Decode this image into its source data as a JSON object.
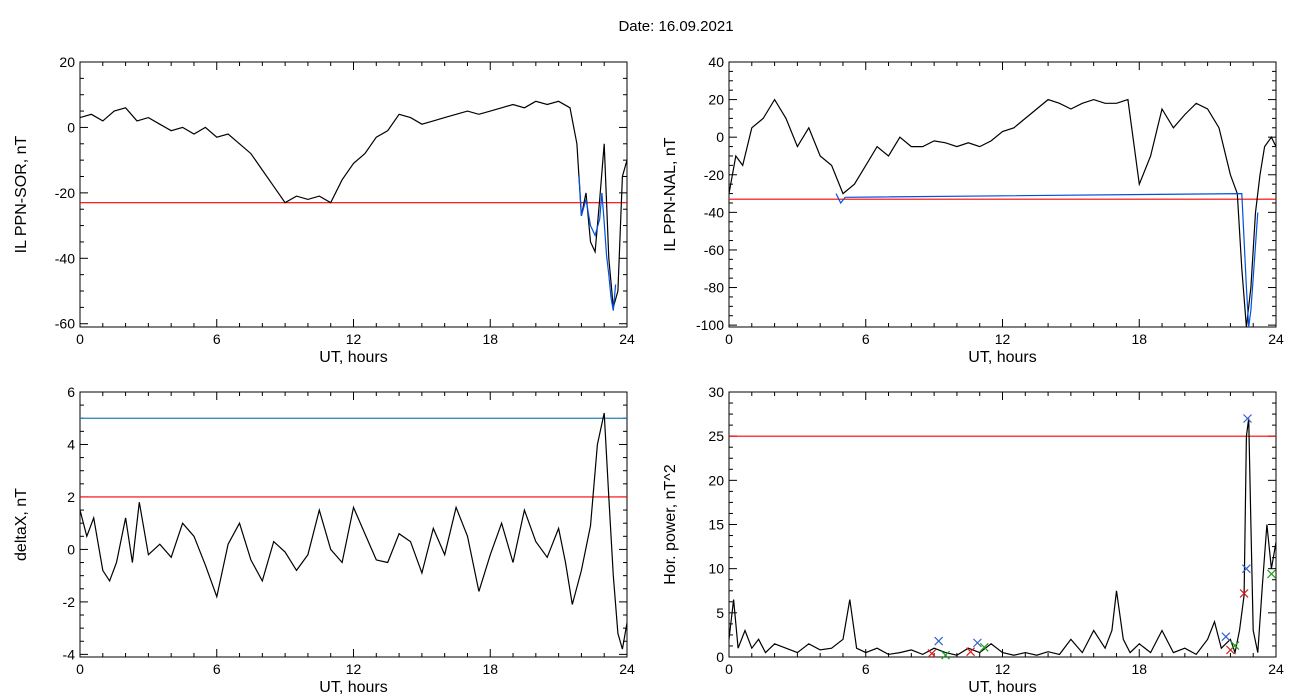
{
  "page": {
    "title": "Date:  16.09.2021"
  },
  "chart_data": [
    {
      "id": "sor",
      "type": "line",
      "title": "",
      "xlabel": "UT, hours",
      "ylabel": "IL PPN-SOR, nT",
      "xlim": [
        0,
        24
      ],
      "ylim": [
        -61,
        20
      ],
      "xticks": [
        0,
        6,
        12,
        18,
        24
      ],
      "yticks": [
        20,
        0,
        -20,
        -40,
        -60
      ],
      "threshold_lines": [
        {
          "y": -23,
          "color": "#ff0000"
        }
      ],
      "series": [
        {
          "color": "#000000",
          "x": [
            0,
            0.5,
            1,
            1.5,
            2,
            2.5,
            3,
            3.5,
            4,
            4.5,
            5,
            5.5,
            6,
            6.5,
            7,
            7.5,
            8,
            8.5,
            9,
            9.5,
            10,
            10.5,
            11,
            11.5,
            12,
            12.5,
            13,
            13.5,
            14,
            14.5,
            15,
            15.5,
            16,
            16.5,
            17,
            17.5,
            18,
            18.5,
            19,
            19.5,
            20,
            20.5,
            21,
            21.5,
            21.8,
            22,
            22.2,
            22.4,
            22.6,
            22.8,
            23,
            23.2,
            23.4,
            23.6,
            23.8,
            24
          ],
          "y": [
            3,
            4,
            2,
            5,
            6,
            2,
            3,
            1,
            -1,
            0,
            -2,
            0,
            -3,
            -2,
            -5,
            -8,
            -13,
            -18,
            -23,
            -21,
            -22,
            -21,
            -23,
            -16,
            -11,
            -8,
            -3,
            -1,
            4,
            3,
            1,
            2,
            3,
            4,
            5,
            4,
            5,
            6,
            7,
            6,
            8,
            7,
            8,
            6,
            -5,
            -27,
            -20,
            -35,
            -38,
            -22,
            -5,
            -40,
            -55,
            -50,
            -15,
            -10
          ]
        },
        {
          "color": "#0050dd",
          "x": [
            21.9,
            22.0,
            22.2,
            22.4,
            22.6,
            22.8,
            22.9,
            23.0,
            23.1,
            23.2,
            23.3,
            23.4,
            23.5
          ],
          "y": [
            -15,
            -27,
            -22,
            -30,
            -33,
            -28,
            -20,
            -29,
            -39,
            -45,
            -52,
            -56,
            -48
          ]
        }
      ]
    },
    {
      "id": "nal",
      "type": "line",
      "title": "",
      "xlabel": "UT, hours",
      "ylabel": "IL PPN-NAL, nT",
      "xlim": [
        0,
        24
      ],
      "ylim": [
        -101,
        40
      ],
      "xticks": [
        0,
        6,
        12,
        18,
        24
      ],
      "yticks": [
        40,
        20,
        0,
        -20,
        -40,
        -60,
        -80,
        -100
      ],
      "threshold_lines": [
        {
          "y": -33,
          "color": "#ff0000"
        }
      ],
      "series": [
        {
          "color": "#000000",
          "x": [
            0,
            0.3,
            0.6,
            1,
            1.5,
            2,
            2.5,
            3,
            3.5,
            4,
            4.5,
            5,
            5.5,
            6,
            6.5,
            7,
            7.5,
            8,
            8.5,
            9,
            9.5,
            10,
            10.5,
            11,
            11.5,
            12,
            12.5,
            13,
            13.5,
            14,
            14.5,
            15,
            15.5,
            16,
            16.5,
            17,
            17.5,
            18,
            18.5,
            19,
            19.5,
            20,
            20.5,
            21,
            21.5,
            22,
            22.3,
            22.5,
            22.7,
            22.9,
            23.1,
            23.3,
            23.5,
            23.8,
            24
          ],
          "y": [
            -30,
            -10,
            -15,
            5,
            10,
            20,
            10,
            -5,
            5,
            -10,
            -15,
            -30,
            -25,
            -15,
            -5,
            -10,
            0,
            -5,
            -5,
            -2,
            -3,
            -5,
            -3,
            -5,
            -2,
            3,
            5,
            10,
            15,
            20,
            18,
            15,
            18,
            20,
            18,
            18,
            20,
            -25,
            -10,
            15,
            5,
            12,
            18,
            15,
            5,
            -20,
            -30,
            -70,
            -101,
            -80,
            -40,
            -20,
            -5,
            0,
            -5
          ]
        },
        {
          "color": "#0050dd",
          "x": [
            4.7,
            4.9,
            5.1,
            22.5,
            22.6,
            22.7,
            22.8,
            22.9,
            23.0,
            23.2
          ],
          "y": [
            -30,
            -35,
            -32,
            -30,
            -55,
            -80,
            -101,
            -92,
            -75,
            -40
          ]
        }
      ]
    },
    {
      "id": "deltax",
      "type": "line",
      "title": "",
      "xlabel": "UT, hours",
      "ylabel": "deltaX, nT",
      "xlim": [
        0,
        24
      ],
      "ylim": [
        -4.1,
        6
      ],
      "xticks": [
        0,
        6,
        12,
        18,
        24
      ],
      "yticks": [
        6,
        4,
        2,
        0,
        -2,
        -4
      ],
      "threshold_lines": [
        {
          "y": 5,
          "color": "#2a7fb8"
        },
        {
          "y": 2,
          "color": "#ff0000"
        }
      ],
      "series": [
        {
          "color": "#000000",
          "x": [
            0,
            0.3,
            0.6,
            1,
            1.3,
            1.6,
            2,
            2.3,
            2.6,
            3,
            3.5,
            4,
            4.5,
            5,
            5.5,
            6,
            6.5,
            7,
            7.5,
            8,
            8.5,
            9,
            9.5,
            10,
            10.5,
            11,
            11.5,
            12,
            12.5,
            13,
            13.5,
            14,
            14.5,
            15,
            15.5,
            16,
            16.5,
            17,
            17.5,
            18,
            18.5,
            19,
            19.5,
            20,
            20.5,
            21,
            21.3,
            21.6,
            22,
            22.4,
            22.7,
            23,
            23.2,
            23.4,
            23.6,
            23.8,
            24
          ],
          "y": [
            1.5,
            0.5,
            1.2,
            -0.8,
            -1.2,
            -0.5,
            1.2,
            -0.5,
            1.8,
            -0.2,
            0.2,
            -0.3,
            1.0,
            0.5,
            -0.6,
            -1.8,
            0.2,
            1.0,
            -0.4,
            -1.2,
            0.3,
            -0.1,
            -0.8,
            -0.2,
            1.5,
            0.0,
            -0.5,
            1.6,
            0.6,
            -0.4,
            -0.5,
            0.6,
            0.3,
            -0.9,
            0.8,
            -0.2,
            1.6,
            0.5,
            -1.6,
            -0.2,
            1.0,
            -0.5,
            1.5,
            0.3,
            -0.3,
            0.8,
            -0.5,
            -2.1,
            -0.8,
            0.9,
            4.0,
            5.2,
            2.0,
            -1.0,
            -3.2,
            -3.8,
            -2.8
          ]
        }
      ]
    },
    {
      "id": "power",
      "type": "line",
      "title": "",
      "xlabel": "UT, hours",
      "ylabel": "Hor. power, nT^2",
      "xlim": [
        0,
        24
      ],
      "ylim": [
        0,
        30
      ],
      "xticks": [
        0,
        6,
        12,
        18,
        24
      ],
      "yticks": [
        30,
        25,
        20,
        15,
        10,
        5,
        0
      ],
      "threshold_lines": [
        {
          "y": 25,
          "color": "#ff0000"
        }
      ],
      "series": [
        {
          "color": "#000000",
          "x": [
            0,
            0.2,
            0.4,
            0.7,
            1,
            1.3,
            1.6,
            2,
            2.5,
            3,
            3.5,
            4,
            4.5,
            5,
            5.3,
            5.6,
            6,
            6.5,
            7,
            7.5,
            8,
            8.5,
            9,
            9.5,
            10,
            10.5,
            11,
            11.5,
            12,
            12.5,
            13,
            13.5,
            14,
            14.5,
            15,
            15.5,
            16,
            16.5,
            16.8,
            17,
            17.3,
            17.6,
            18,
            18.5,
            19,
            19.5,
            20,
            20.5,
            21,
            21.3,
            21.6,
            22,
            22.2,
            22.4,
            22.6,
            22.7,
            22.8,
            22.9,
            23.0,
            23.2,
            23.4,
            23.6,
            23.8,
            24
          ],
          "y": [
            2,
            6.5,
            1,
            3,
            1,
            2,
            0.5,
            1.5,
            1,
            0.5,
            1.5,
            0.8,
            1,
            2,
            6.5,
            1,
            0.5,
            1,
            0.3,
            0.5,
            0.8,
            0.3,
            1,
            0.5,
            0.2,
            1,
            0.5,
            1.5,
            0.5,
            0.2,
            0.5,
            0.2,
            0.6,
            0.3,
            2,
            0.5,
            3,
            1,
            3,
            7.5,
            2,
            0.5,
            1.5,
            0.5,
            3,
            0.5,
            1,
            0.3,
            2,
            4,
            1,
            2,
            0.5,
            3,
            7,
            25,
            27,
            15,
            3,
            0.5,
            8,
            15,
            10,
            13
          ]
        }
      ],
      "markers": [
        {
          "x": 9.2,
          "y": 1.8,
          "color": "#3060d0"
        },
        {
          "x": 8.9,
          "y": 0.4,
          "color": "#dd2020"
        },
        {
          "x": 9.5,
          "y": 0.2,
          "color": "#20a020"
        },
        {
          "x": 10.6,
          "y": 0.6,
          "color": "#dd2020"
        },
        {
          "x": 10.9,
          "y": 1.6,
          "color": "#3060d0"
        },
        {
          "x": 11.2,
          "y": 1.1,
          "color": "#20a020"
        },
        {
          "x": 21.8,
          "y": 2.3,
          "color": "#3060d0"
        },
        {
          "x": 22.0,
          "y": 0.8,
          "color": "#dd2020"
        },
        {
          "x": 22.2,
          "y": 1.3,
          "color": "#20a020"
        },
        {
          "x": 22.6,
          "y": 7.2,
          "color": "#dd2020"
        },
        {
          "x": 22.7,
          "y": 10.0,
          "color": "#3060d0"
        },
        {
          "x": 22.75,
          "y": 27.0,
          "color": "#3060d0"
        },
        {
          "x": 23.8,
          "y": 9.4,
          "color": "#20a020"
        }
      ]
    }
  ]
}
